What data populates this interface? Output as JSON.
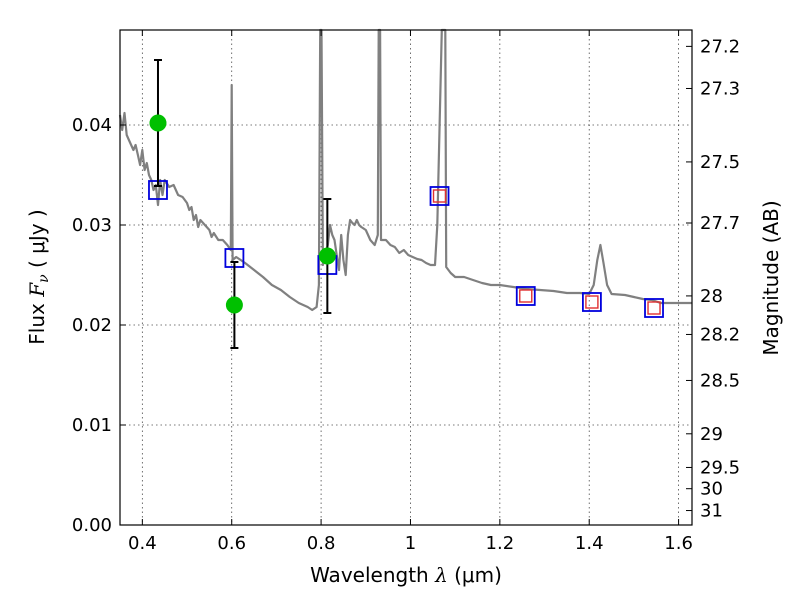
{
  "chart_data": {
    "type": "scatter",
    "xlabel_prefix": "Wavelength",
    "xlabel_symbol": "λ",
    "xlabel_unit": "(μm)",
    "ylabel_prefix": "Flux",
    "ylabel_symbol": "F",
    "ylabel_subscript": "ν",
    "ylabel_unit": "( μJy )",
    "y2label": "Magnitude (AB)",
    "xlim": [
      0.35,
      1.63
    ],
    "ylim": [
      0.0,
      0.0495
    ],
    "grid": true,
    "x_ticks": [
      {
        "value": 0.4,
        "label": "0.4"
      },
      {
        "value": 0.6,
        "label": "0.6"
      },
      {
        "value": 0.8,
        "label": "0.8"
      },
      {
        "value": 1.0,
        "label": "1"
      },
      {
        "value": 1.2,
        "label": "1.2"
      },
      {
        "value": 1.4,
        "label": "1.4"
      },
      {
        "value": 1.6,
        "label": "1.6"
      }
    ],
    "y_ticks": [
      {
        "value": 0.0,
        "label": "0.00"
      },
      {
        "value": 0.01,
        "label": "0.01"
      },
      {
        "value": 0.02,
        "label": "0.02"
      },
      {
        "value": 0.03,
        "label": "0.03"
      },
      {
        "value": 0.04,
        "label": "0.04"
      }
    ],
    "magnitude_ticks": [
      {
        "value": 27.2,
        "label": "27.2"
      },
      {
        "value": 27.3,
        "label": "27.3"
      },
      {
        "value": 27.5,
        "label": "27.5"
      },
      {
        "value": 27.7,
        "label": "27.7"
      },
      {
        "value": 28.0,
        "label": "28"
      },
      {
        "value": 28.2,
        "label": "28.2"
      },
      {
        "value": 28.5,
        "label": "28.5"
      },
      {
        "value": 29.0,
        "label": "29"
      },
      {
        "value": 29.5,
        "label": "29.5"
      },
      {
        "value": 30.0,
        "label": "30"
      },
      {
        "value": 31.0,
        "label": "31"
      }
    ],
    "model_sed": {
      "name": "",
      "color": "#808080",
      "points": [
        [
          0.35,
          0.041
        ],
        [
          0.355,
          0.0395
        ],
        [
          0.36,
          0.0412
        ],
        [
          0.365,
          0.039
        ],
        [
          0.37,
          0.0385
        ],
        [
          0.38,
          0.0375
        ],
        [
          0.385,
          0.038
        ],
        [
          0.39,
          0.037
        ],
        [
          0.395,
          0.036
        ],
        [
          0.4,
          0.0375
        ],
        [
          0.405,
          0.0355
        ],
        [
          0.41,
          0.0362
        ],
        [
          0.415,
          0.035
        ],
        [
          0.42,
          0.0345
        ],
        [
          0.425,
          0.0335
        ],
        [
          0.43,
          0.034
        ],
        [
          0.435,
          0.032
        ],
        [
          0.44,
          0.0345
        ],
        [
          0.445,
          0.033
        ],
        [
          0.45,
          0.0345
        ],
        [
          0.46,
          0.0338
        ],
        [
          0.47,
          0.034
        ],
        [
          0.48,
          0.033
        ],
        [
          0.49,
          0.0328
        ],
        [
          0.5,
          0.0322
        ],
        [
          0.505,
          0.0315
        ],
        [
          0.51,
          0.0318
        ],
        [
          0.515,
          0.0305
        ],
        [
          0.52,
          0.031
        ],
        [
          0.525,
          0.0298
        ],
        [
          0.53,
          0.0305
        ],
        [
          0.54,
          0.03
        ],
        [
          0.55,
          0.0295
        ],
        [
          0.555,
          0.0288
        ],
        [
          0.56,
          0.0292
        ],
        [
          0.57,
          0.0285
        ],
        [
          0.58,
          0.0285
        ],
        [
          0.59,
          0.028
        ],
        [
          0.598,
          0.0275
        ],
        [
          0.6,
          0.044
        ],
        [
          0.602,
          0.0265
        ],
        [
          0.61,
          0.0268
        ],
        [
          0.62,
          0.0265
        ],
        [
          0.63,
          0.0262
        ],
        [
          0.65,
          0.0255
        ],
        [
          0.67,
          0.0248
        ],
        [
          0.69,
          0.024
        ],
        [
          0.71,
          0.0235
        ],
        [
          0.73,
          0.0228
        ],
        [
          0.75,
          0.0222
        ],
        [
          0.77,
          0.0218
        ],
        [
          0.78,
          0.0215
        ],
        [
          0.79,
          0.0218
        ],
        [
          0.795,
          0.024
        ],
        [
          0.798,
          0.0495
        ],
        [
          0.801,
          0.0495
        ],
        [
          0.804,
          0.026
        ],
        [
          0.81,
          0.027
        ],
        [
          0.815,
          0.028
        ],
        [
          0.82,
          0.03
        ],
        [
          0.825,
          0.029
        ],
        [
          0.83,
          0.0285
        ],
        [
          0.835,
          0.027
        ],
        [
          0.84,
          0.0255
        ],
        [
          0.845,
          0.029
        ],
        [
          0.85,
          0.0265
        ],
        [
          0.855,
          0.025
        ],
        [
          0.86,
          0.029
        ],
        [
          0.865,
          0.0305
        ],
        [
          0.87,
          0.0302
        ],
        [
          0.875,
          0.03
        ],
        [
          0.88,
          0.0305
        ],
        [
          0.885,
          0.03
        ],
        [
          0.89,
          0.0298
        ],
        [
          0.9,
          0.0295
        ],
        [
          0.91,
          0.0285
        ],
        [
          0.92,
          0.028
        ],
        [
          0.927,
          0.029
        ],
        [
          0.929,
          0.0495
        ],
        [
          0.932,
          0.0495
        ],
        [
          0.934,
          0.0285
        ],
        [
          0.945,
          0.0285
        ],
        [
          0.955,
          0.028
        ],
        [
          0.965,
          0.0278
        ],
        [
          0.975,
          0.0272
        ],
        [
          0.985,
          0.0275
        ],
        [
          0.995,
          0.027
        ],
        [
          1.005,
          0.0268
        ],
        [
          1.015,
          0.0266
        ],
        [
          1.025,
          0.0265
        ],
        [
          1.035,
          0.0262
        ],
        [
          1.045,
          0.026
        ],
        [
          1.055,
          0.026
        ],
        [
          1.06,
          0.03
        ],
        [
          1.07,
          0.0495
        ],
        [
          1.078,
          0.0495
        ],
        [
          1.08,
          0.0258
        ],
        [
          1.09,
          0.0252
        ],
        [
          1.1,
          0.0248
        ],
        [
          1.12,
          0.0248
        ],
        [
          1.14,
          0.0245
        ],
        [
          1.16,
          0.0242
        ],
        [
          1.18,
          0.024
        ],
        [
          1.2,
          0.024
        ],
        [
          1.23,
          0.0238
        ],
        [
          1.26,
          0.0236
        ],
        [
          1.29,
          0.0235
        ],
        [
          1.32,
          0.0234
        ],
        [
          1.35,
          0.0232
        ],
        [
          1.38,
          0.0232
        ],
        [
          1.4,
          0.0231
        ],
        [
          1.41,
          0.024
        ],
        [
          1.418,
          0.0265
        ],
        [
          1.425,
          0.028
        ],
        [
          1.432,
          0.0262
        ],
        [
          1.44,
          0.024
        ],
        [
          1.45,
          0.0231
        ],
        [
          1.48,
          0.023
        ],
        [
          1.5,
          0.0228
        ],
        [
          1.52,
          0.0226
        ],
        [
          1.54,
          0.0225
        ],
        [
          1.56,
          0.0222
        ],
        [
          1.58,
          0.0222
        ],
        [
          1.6,
          0.0222
        ],
        [
          1.63,
          0.0222
        ]
      ]
    },
    "observed": {
      "name": "",
      "color": "#00c000",
      "points": [
        {
          "x": 0.435,
          "y": 0.0402,
          "err": 0.0063
        },
        {
          "x": 0.606,
          "y": 0.022,
          "err": 0.0043
        },
        {
          "x": 0.814,
          "y": 0.0269,
          "err": 0.0057
        }
      ]
    },
    "model_phot_blue": {
      "name": "",
      "color": "#0000dd",
      "points": [
        [
          0.435,
          0.0335
        ],
        [
          0.606,
          0.0267
        ],
        [
          0.814,
          0.026
        ],
        [
          1.065,
          0.0329
        ],
        [
          1.258,
          0.0229
        ],
        [
          1.406,
          0.0223
        ],
        [
          1.545,
          0.0217
        ]
      ]
    },
    "model_phot_red": {
      "name": "",
      "color": "#e03030",
      "points": [
        [
          1.065,
          0.0329
        ],
        [
          1.258,
          0.0229
        ],
        [
          1.406,
          0.0223
        ],
        [
          1.545,
          0.0217
        ]
      ]
    }
  }
}
